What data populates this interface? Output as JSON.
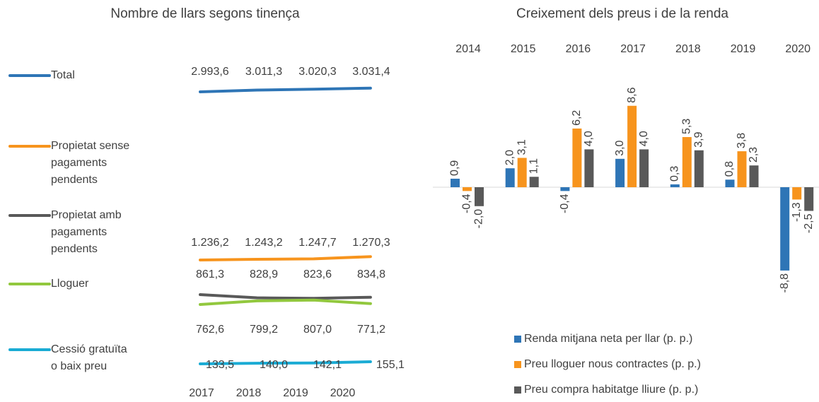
{
  "chart_data": [
    {
      "type": "line",
      "title": "Nombre de llars segons tinença",
      "categories": [
        "2017",
        "2018",
        "2019",
        "2020"
      ],
      "series": [
        {
          "name": "Total",
          "color": "#2e75b6",
          "values": [
            2993.6,
            3011.3,
            3020.3,
            3031.4
          ],
          "value_labels": [
            "2.993,6",
            "3.011,3",
            "3.020,3",
            "3.031,4"
          ]
        },
        {
          "name": "Propietat sense pagaments pendents",
          "color": "#f7941d",
          "values": [
            1236.2,
            1243.2,
            1247.7,
            1270.3
          ],
          "value_labels": [
            "1.236,2",
            "1.243,2",
            "1.247,7",
            "1.270,3"
          ]
        },
        {
          "name": "Propietat amb pagaments pendents",
          "color": "#595959",
          "values": [
            861.3,
            828.9,
            823.6,
            834.8
          ],
          "value_labels": [
            "861,3",
            "828,9",
            "823,6",
            "834,8"
          ]
        },
        {
          "name": "Lloguer",
          "color": "#92c83e",
          "values": [
            762.6,
            799.2,
            807.0,
            771.2
          ],
          "value_labels": [
            "762,6",
            "799,2",
            "807,0",
            "771,2"
          ]
        },
        {
          "name": "Cessió gratuïta o baix preu",
          "color": "#1aabd4",
          "values": [
            133.5,
            140.0,
            142.1,
            155.1
          ],
          "value_labels": [
            "133,5",
            "140,0",
            "142,1",
            "155,1"
          ]
        }
      ]
    },
    {
      "type": "bar",
      "title": "Creixement dels preus i de la renda",
      "categories": [
        "2014",
        "2015",
        "2016",
        "2017",
        "2018",
        "2019",
        "2020"
      ],
      "series": [
        {
          "name": "Renda mitjana neta per llar (p. p.)",
          "color": "#2e75b6",
          "values": [
            0.9,
            2.0,
            -0.4,
            3.0,
            0.3,
            0.8,
            -8.8
          ],
          "value_labels": [
            "0,9",
            "2,0",
            "-0,4",
            "3,0",
            "0,3",
            "0,8",
            "-8,8"
          ]
        },
        {
          "name": "Preu lloguer nous contractes (p. p.)",
          "color": "#f7941d",
          "values": [
            -0.4,
            3.1,
            6.2,
            8.6,
            5.3,
            3.8,
            -1.3
          ],
          "value_labels": [
            "-0,4",
            "3,1",
            "6,2",
            "8,6",
            "5,3",
            "3,8",
            "-1,3"
          ]
        },
        {
          "name": "Preu compra habitatge lliure (p. p.)",
          "color": "#595959",
          "values": [
            -2.0,
            1.1,
            4.0,
            4.0,
            3.9,
            2.3,
            -2.5
          ],
          "value_labels": [
            "-2,0",
            "1,1",
            "4,0",
            "4,0",
            "3,9",
            "2,3",
            "-2,5"
          ]
        }
      ]
    }
  ]
}
